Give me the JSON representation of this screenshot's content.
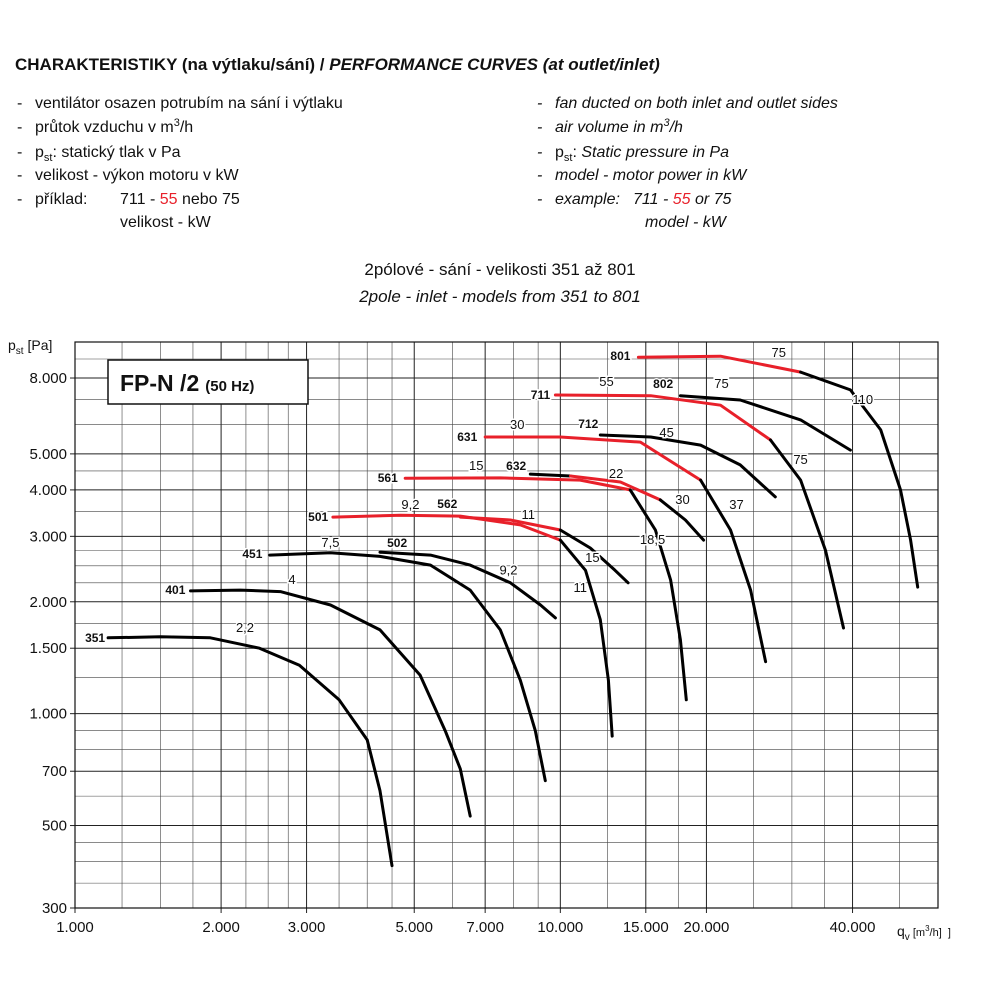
{
  "header": {
    "title_cz": "CHARAKTERISTIKY (na výtlaku/sání) / ",
    "title_en": "PERFORMANCE CURVES (at outlet/inlet)",
    "bullet": "-",
    "notes_cz": [
      [
        "ventilátor osazen potrubím na sání i výtlaku"
      ],
      [
        "průtok vzduchu v m",
        "3",
        "/h"
      ],
      [
        "p",
        "st",
        ": statický tlak v Pa"
      ],
      [
        "velikost - výkon motoru v kW"
      ],
      [
        "příklad:",
        "711 - ",
        "55",
        " nebo 75"
      ],
      [
        "velikost - kW"
      ]
    ],
    "notes_en": [
      [
        "fan ducted on both inlet and outlet sides"
      ],
      [
        "air volume in m",
        "3",
        "/h"
      ],
      [
        "p",
        "st",
        ": ",
        "Static pressure in Pa"
      ],
      [
        "model - motor power in kW"
      ],
      [
        "example:",
        "711 - ",
        "55",
        " or 75"
      ],
      [
        "model - kW"
      ]
    ],
    "subtitle_cz": "2pólové - sání - velikosti 351 až 801",
    "subtitle_en": "2pole - inlet - models from 351 to 801"
  },
  "chart_data": {
    "type": "line",
    "box_title": "FP-N /2",
    "box_subtitle": "(50 Hz)",
    "y_label": [
      "p",
      "st",
      " [Pa]"
    ],
    "x_label": [
      "q",
      "v",
      " [m",
      "3",
      "/h]  ]"
    ],
    "xscale": "log",
    "yscale": "log",
    "grid": true,
    "xlim": [
      1000,
      60000
    ],
    "ylim": [
      300,
      10000
    ],
    "xticks": [
      {
        "value": 1000,
        "label": "1.000"
      },
      {
        "value": 2000,
        "label": "2.000"
      },
      {
        "value": 3000,
        "label": "3.000"
      },
      {
        "value": 5000,
        "label": "5.000"
      },
      {
        "value": 7000,
        "label": "7.000"
      },
      {
        "value": 10000,
        "label": "10.000"
      },
      {
        "value": 15000,
        "label": "15.000"
      },
      {
        "value": 20000,
        "label": "20.000"
      },
      {
        "value": 40000,
        "label": "40.000"
      }
    ],
    "yticks": [
      300,
      500,
      700,
      {
        "value": 1000,
        "label": "1.000"
      },
      {
        "value": 1500,
        "label": "1.500"
      },
      {
        "value": 2000,
        "label": "2.000"
      },
      {
        "value": 3000,
        "label": "3.000"
      },
      {
        "value": 4000,
        "label": "4.000"
      },
      {
        "value": 5000,
        "label": "5.000"
      },
      {
        "value": 8000,
        "label": "8.000"
      }
    ],
    "xgrid": [
      1250,
      1500,
      1750,
      2250,
      2500,
      2750,
      3500,
      4000,
      4500,
      6000,
      8000,
      9000,
      12500,
      17500,
      25000,
      30000,
      35000,
      50000,
      60000
    ],
    "ygrid": [
      350,
      400,
      450,
      600,
      800,
      900,
      1250,
      1750,
      2250,
      2500,
      2750,
      3500,
      4500,
      6000,
      7000,
      9000,
      10000
    ],
    "series": [
      {
        "color": "#000000",
        "x": [
          1170,
          1500,
          1900,
          2400,
          2900,
          3500,
          4000,
          4250,
          4500
        ],
        "y": [
          1600,
          1610,
          1600,
          1500,
          1350,
          1090,
          850,
          620,
          390
        ]
      },
      {
        "color": "#000000",
        "x": [
          1730,
          2190,
          2650,
          3360,
          4250,
          5140,
          5790,
          6220,
          6520
        ],
        "y": [
          2140,
          2150,
          2130,
          1960,
          1680,
          1270,
          900,
          710,
          530
        ]
      },
      {
        "color": "#000000",
        "x": [
          2520,
          3360,
          4250,
          5400,
          6520,
          7520,
          8270,
          8880,
          9310
        ],
        "y": [
          2670,
          2710,
          2650,
          2510,
          2150,
          1680,
          1230,
          900,
          660
        ]
      },
      {
        "color": "#000000",
        "x": [
          4250,
          5400,
          6520,
          7890,
          9100,
          9770
        ],
        "y": [
          2720,
          2670,
          2510,
          2250,
          1960,
          1810
        ]
      },
      {
        "color": "#e8202a",
        "x": [
          3400,
          4680,
          6220,
          8270,
          10000
        ],
        "y": [
          3380,
          3420,
          3400,
          3220,
          2930
        ]
      },
      {
        "color": "#000000",
        "x": [
          10000,
          11270,
          12090,
          12560,
          12790
        ],
        "y": [
          2930,
          2430,
          1790,
          1230,
          870
        ]
      },
      {
        "color": "#e8202a",
        "x": [
          6220,
          7890,
          10000
        ],
        "y": [
          3380,
          3320,
          3120
        ]
      },
      {
        "color": "#000000",
        "x": [
          10000,
          11530,
          12960,
          13790
        ],
        "y": [
          3120,
          2790,
          2430,
          2250
        ]
      },
      {
        "color": "#e8202a",
        "x": [
          4790,
          7520,
          10990,
          13930
        ],
        "y": [
          4300,
          4310,
          4250,
          4000
        ]
      },
      {
        "color": "#000000",
        "x": [
          13930,
          15700,
          16870,
          17680,
          18180
        ],
        "y": [
          4000,
          3120,
          2290,
          1580,
          1090
        ]
      },
      {
        "color": "#000000",
        "x": [
          8670,
          10490
        ],
        "y": [
          4410,
          4360
        ]
      },
      {
        "color": "#e8202a",
        "x": [
          10490,
          13300,
          16070
        ],
        "y": [
          4360,
          4200,
          3760
        ]
      },
      {
        "color": "#000000",
        "x": [
          16070,
          18100,
          19730
        ],
        "y": [
          3760,
          3320,
          2930
        ]
      },
      {
        "color": "#e8202a",
        "x": [
          7000,
          10000,
          14620,
          19450
        ],
        "y": [
          5550,
          5550,
          5380,
          4250
        ]
      },
      {
        "color": "#000000",
        "x": [
          19450,
          22420,
          24660,
          26480
        ],
        "y": [
          4250,
          3120,
          2150,
          1380
        ]
      },
      {
        "color": "#000000",
        "x": [
          12090,
          15350,
          19450,
          23480,
          27730
        ],
        "y": [
          5620,
          5550,
          5280,
          4670,
          3830
        ]
      },
      {
        "color": "#e8202a",
        "x": [
          9770,
          15350,
          21380,
          27100
        ],
        "y": [
          7200,
          7170,
          6760,
          5450
        ]
      },
      {
        "color": "#000000",
        "x": [
          27100,
          31260,
          35180,
          38330
        ],
        "y": [
          5450,
          4250,
          2750,
          1700
        ]
      },
      {
        "color": "#000000",
        "x": [
          17680,
          23480,
          31260,
          39600
        ],
        "y": [
          7170,
          6980,
          6170,
          5120
        ]
      },
      {
        "color": "#e8202a",
        "x": [
          14480,
          21380,
          31260
        ],
        "y": [
          9100,
          9160,
          8300
        ]
      },
      {
        "color": "#000000",
        "x": [
          31260,
          39600,
          45710,
          50230,
          52690,
          54490
        ],
        "y": [
          8300,
          7430,
          5800,
          4000,
          2930,
          2190
        ]
      }
    ],
    "model_labels": [
      {
        "text": "351",
        "x": 1100,
        "y": 1600,
        "color": "#000000"
      },
      {
        "text": "401",
        "x": 1610,
        "y": 2150,
        "color": "#000000"
      },
      {
        "text": "451",
        "x": 2320,
        "y": 2690,
        "color": "#000000"
      },
      {
        "text": "501",
        "x": 3170,
        "y": 3380,
        "color": "#000000"
      },
      {
        "text": "561",
        "x": 4410,
        "y": 4310,
        "color": "#000000"
      },
      {
        "text": "631",
        "x": 6430,
        "y": 5550,
        "color": "#000000"
      },
      {
        "text": "711",
        "x": 9100,
        "y": 7200,
        "color": "#000000"
      },
      {
        "text": "801",
        "x": 13300,
        "y": 9160,
        "color": "#000000"
      },
      {
        "text": "502",
        "x": 4610,
        "y": 2880,
        "color": "#000000"
      },
      {
        "text": "562",
        "x": 5850,
        "y": 3660,
        "color": "#000000"
      },
      {
        "text": "632",
        "x": 8110,
        "y": 4640,
        "color": "#000000"
      },
      {
        "text": "712",
        "x": 11420,
        "y": 6010,
        "color": "#000000"
      },
      {
        "text": "802",
        "x": 16290,
        "y": 7710,
        "color": "#000000"
      }
    ],
    "power_labels": [
      {
        "text": "2,2",
        "x": 2240,
        "y": 1700,
        "color": "#000000"
      },
      {
        "text": "4",
        "x": 2800,
        "y": 2290,
        "color": "#000000"
      },
      {
        "text": "7,5",
        "x": 3360,
        "y": 2880,
        "color": "#000000"
      },
      {
        "text": "9,2",
        "x": 4910,
        "y": 3640,
        "color": "#e8202a"
      },
      {
        "text": "11",
        "x": 8590,
        "y": 3420,
        "color": "#e8202a"
      },
      {
        "text": "9,2",
        "x": 7820,
        "y": 2430,
        "color": "#000000"
      },
      {
        "text": "11",
        "x": 10990,
        "y": 2180,
        "color": "#000000"
      },
      {
        "text": "15",
        "x": 11640,
        "y": 2620,
        "color": "#000000"
      },
      {
        "text": "15",
        "x": 6710,
        "y": 4640,
        "color": "#e8202a"
      },
      {
        "text": "22",
        "x": 13030,
        "y": 4410,
        "color": "#e8202a"
      },
      {
        "text": "18,5",
        "x": 15490,
        "y": 2930,
        "color": "#000000"
      },
      {
        "text": "30",
        "x": 17850,
        "y": 3760,
        "color": "#000000"
      },
      {
        "text": "30",
        "x": 8150,
        "y": 5980,
        "color": "#e8202a"
      },
      {
        "text": "37",
        "x": 23070,
        "y": 3640,
        "color": "#000000"
      },
      {
        "text": "45",
        "x": 16560,
        "y": 5690,
        "color": "#000000"
      },
      {
        "text": "55",
        "x": 12450,
        "y": 7800,
        "color": "#e8202a"
      },
      {
        "text": "75",
        "x": 21480,
        "y": 7710,
        "color": "#000000"
      },
      {
        "text": "75",
        "x": 31260,
        "y": 4810,
        "color": "#000000"
      },
      {
        "text": "75",
        "x": 28180,
        "y": 9330,
        "color": "#e8202a"
      },
      {
        "text": "110",
        "x": 41980,
        "y": 6980,
        "color": "#000000"
      }
    ]
  }
}
